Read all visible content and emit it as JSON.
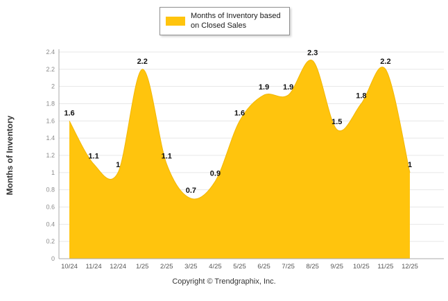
{
  "legend": {
    "label_line1": "Months of Inventory based",
    "label_line2": "on Closed Sales"
  },
  "footer": {
    "copyright": "Copyright © Trendgraphix, Inc."
  },
  "chart_data": {
    "type": "area",
    "title": "",
    "xlabel": "",
    "ylabel": "Months of Inventory",
    "series_name": "Months of Inventory based on Closed Sales",
    "categories": [
      "10/24",
      "11/24",
      "12/24",
      "1/25",
      "2/25",
      "3/25",
      "4/25",
      "5/25",
      "6/25",
      "7/25",
      "8/25",
      "9/25",
      "10/25",
      "11/25",
      "12/25"
    ],
    "values": [
      1.6,
      1.1,
      1,
      2.2,
      1.1,
      0.7,
      0.9,
      1.6,
      1.9,
      1.9,
      2.3,
      1.5,
      1.8,
      2.2,
      1
    ],
    "ylim": [
      0,
      2.4
    ],
    "ytick_step": 0.2,
    "grid": true,
    "legend_position": "top",
    "fill_color": "#FFC40D",
    "stroke_color": "#F2B705",
    "grid_color": "#e7e7e7",
    "axis_color": "#aaaaaa",
    "tick_label_color": "#8a8a8a",
    "x_label_color": "#555555",
    "point_label_color": "#111111"
  }
}
